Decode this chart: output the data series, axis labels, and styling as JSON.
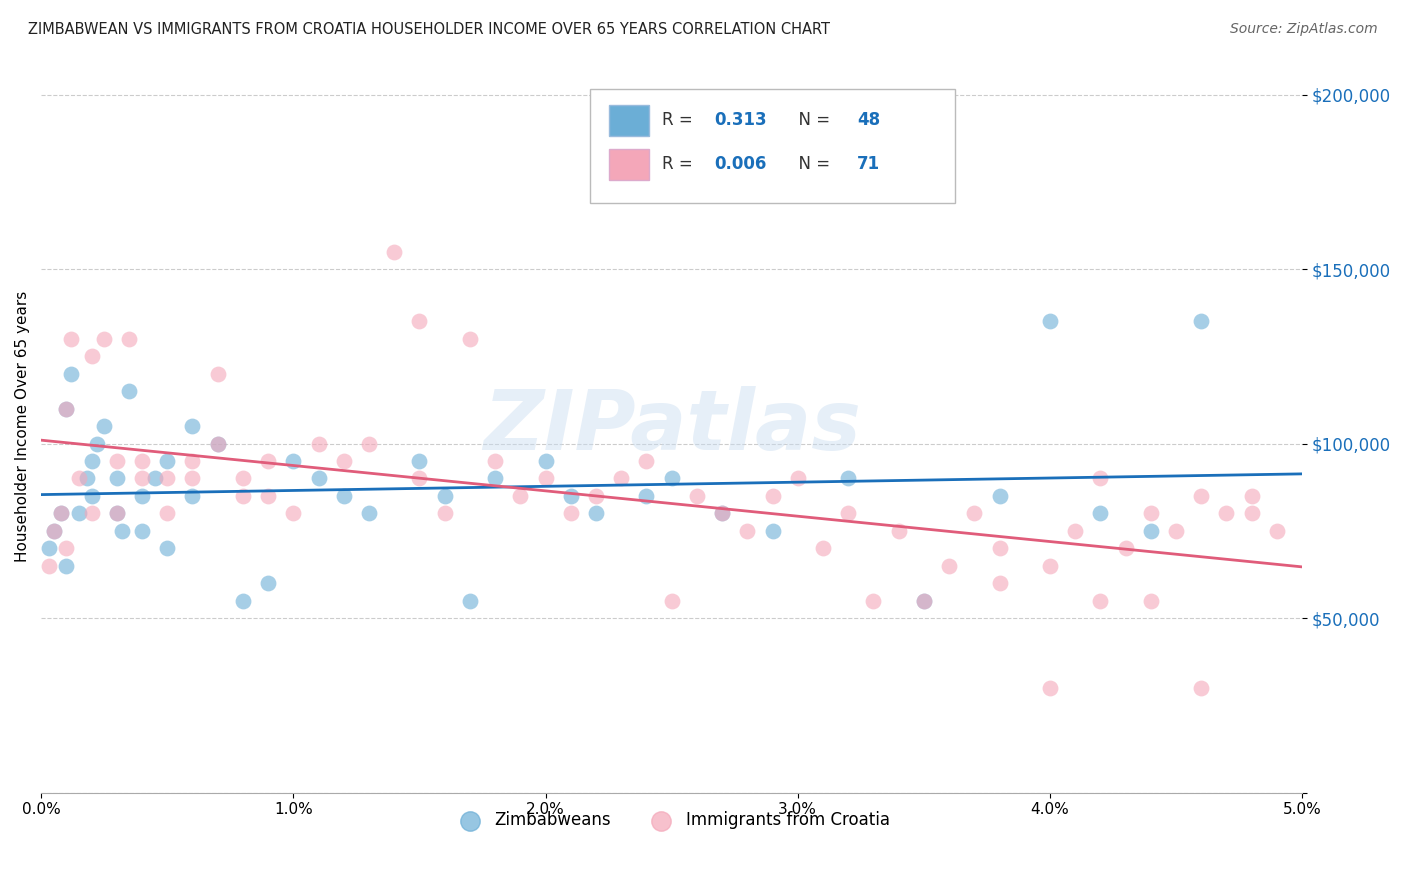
{
  "title": "ZIMBABWEAN VS IMMIGRANTS FROM CROATIA HOUSEHOLDER INCOME OVER 65 YEARS CORRELATION CHART",
  "source": "Source: ZipAtlas.com",
  "ylabel": "Householder Income Over 65 years",
  "xlim": [
    0.0,
    0.05
  ],
  "ylim": [
    0,
    210000
  ],
  "ytick_vals": [
    0,
    50000,
    100000,
    150000,
    200000
  ],
  "ytick_labels": [
    "",
    "$50,000",
    "$100,000",
    "$150,000",
    "$200,000"
  ],
  "xtick_vals": [
    0.0,
    0.01,
    0.02,
    0.03,
    0.04,
    0.05
  ],
  "xtick_labels": [
    "0.0%",
    "1.0%",
    "2.0%",
    "3.0%",
    "4.0%",
    "5.0%"
  ],
  "blue_color": "#6baed6",
  "pink_color": "#f4a7b9",
  "blue_line_color": "#1a6fba",
  "pink_line_color": "#e05c7a",
  "watermark": "ZIPatlas",
  "blue_R": 0.313,
  "blue_N": 48,
  "pink_R": 0.006,
  "pink_N": 71,
  "blue_x": [
    0.0003,
    0.0005,
    0.0008,
    0.001,
    0.001,
    0.0012,
    0.0015,
    0.0018,
    0.002,
    0.002,
    0.0022,
    0.0025,
    0.003,
    0.003,
    0.0032,
    0.0035,
    0.004,
    0.004,
    0.0045,
    0.005,
    0.005,
    0.006,
    0.006,
    0.007,
    0.008,
    0.009,
    0.01,
    0.011,
    0.012,
    0.013,
    0.015,
    0.016,
    0.017,
    0.018,
    0.02,
    0.021,
    0.022,
    0.024,
    0.025,
    0.027,
    0.029,
    0.032,
    0.035,
    0.038,
    0.04,
    0.042,
    0.044,
    0.046
  ],
  "blue_y": [
    70000,
    75000,
    80000,
    110000,
    65000,
    120000,
    80000,
    90000,
    85000,
    95000,
    100000,
    105000,
    90000,
    80000,
    75000,
    115000,
    75000,
    85000,
    90000,
    70000,
    95000,
    105000,
    85000,
    100000,
    55000,
    60000,
    95000,
    90000,
    85000,
    80000,
    95000,
    85000,
    55000,
    90000,
    95000,
    85000,
    80000,
    85000,
    90000,
    80000,
    75000,
    90000,
    55000,
    85000,
    135000,
    80000,
    75000,
    135000
  ],
  "pink_x": [
    0.0003,
    0.0005,
    0.0008,
    0.001,
    0.001,
    0.0012,
    0.0015,
    0.002,
    0.002,
    0.0025,
    0.003,
    0.003,
    0.0035,
    0.004,
    0.004,
    0.005,
    0.005,
    0.006,
    0.006,
    0.007,
    0.007,
    0.008,
    0.008,
    0.009,
    0.009,
    0.01,
    0.011,
    0.012,
    0.013,
    0.014,
    0.015,
    0.015,
    0.016,
    0.017,
    0.018,
    0.019,
    0.02,
    0.021,
    0.022,
    0.023,
    0.024,
    0.025,
    0.026,
    0.027,
    0.028,
    0.029,
    0.03,
    0.031,
    0.032,
    0.033,
    0.034,
    0.035,
    0.036,
    0.037,
    0.038,
    0.04,
    0.041,
    0.042,
    0.043,
    0.044,
    0.045,
    0.046,
    0.047,
    0.048,
    0.049,
    0.048,
    0.046,
    0.044,
    0.042,
    0.04,
    0.038
  ],
  "pink_y": [
    65000,
    75000,
    80000,
    110000,
    70000,
    130000,
    90000,
    80000,
    125000,
    130000,
    95000,
    80000,
    130000,
    90000,
    95000,
    80000,
    90000,
    95000,
    90000,
    120000,
    100000,
    85000,
    90000,
    95000,
    85000,
    80000,
    100000,
    95000,
    100000,
    155000,
    90000,
    135000,
    80000,
    130000,
    95000,
    85000,
    90000,
    80000,
    85000,
    90000,
    95000,
    55000,
    85000,
    80000,
    75000,
    85000,
    90000,
    70000,
    80000,
    55000,
    75000,
    55000,
    65000,
    80000,
    70000,
    30000,
    75000,
    90000,
    70000,
    80000,
    75000,
    30000,
    80000,
    85000,
    75000,
    80000,
    85000,
    55000,
    55000,
    65000,
    60000
  ]
}
